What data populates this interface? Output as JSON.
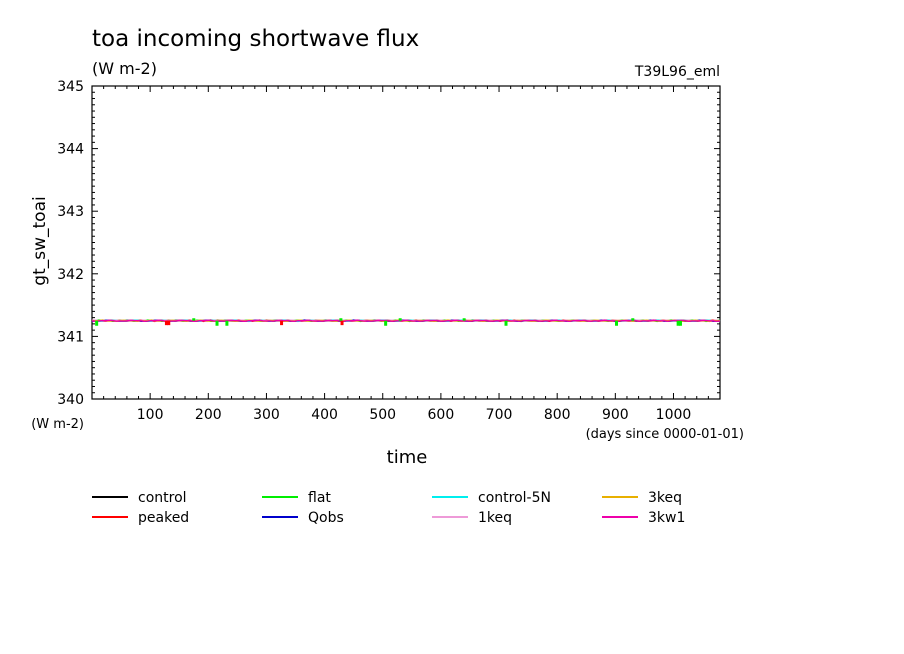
{
  "chart_data": {
    "type": "line",
    "title": "toa incoming shortwave flux",
    "subtitle": "(W m-2)",
    "experiment_label": "T39L96_eml",
    "xlabel": "time",
    "x_unit": "(days since 0000-01-01)",
    "ylabel": "gt_sw_toai",
    "y_unit": "(W m-2)",
    "xlim": [
      0,
      1080
    ],
    "ylim": [
      340,
      345
    ],
    "x_ticks": [
      100,
      200,
      300,
      400,
      500,
      600,
      700,
      800,
      900,
      1000
    ],
    "y_ticks": [
      340,
      341,
      342,
      343,
      344,
      345
    ],
    "grid": false,
    "legend_position": "bottom",
    "series": [
      {
        "name": "control",
        "color": "#000000",
        "values": [
          341.25
        ]
      },
      {
        "name": "peaked",
        "color": "#ff0000",
        "values": [
          341.25,
          341.18
        ]
      },
      {
        "name": "flat",
        "color": "#00ee00",
        "values": [
          341.25,
          341.17,
          341.29
        ]
      },
      {
        "name": "Qobs",
        "color": "#0000cc",
        "values": [
          341.25
        ]
      },
      {
        "name": "control-5N",
        "color": "#00eeee",
        "values": [
          341.25
        ]
      },
      {
        "name": "1keq",
        "color": "#ee9ad8",
        "values": [
          341.25
        ]
      },
      {
        "name": "3keq",
        "color": "#e8b000",
        "values": [
          341.25
        ]
      },
      {
        "name": "3kw1",
        "color": "#ee00aa",
        "values": [
          341.25
        ]
      }
    ]
  }
}
